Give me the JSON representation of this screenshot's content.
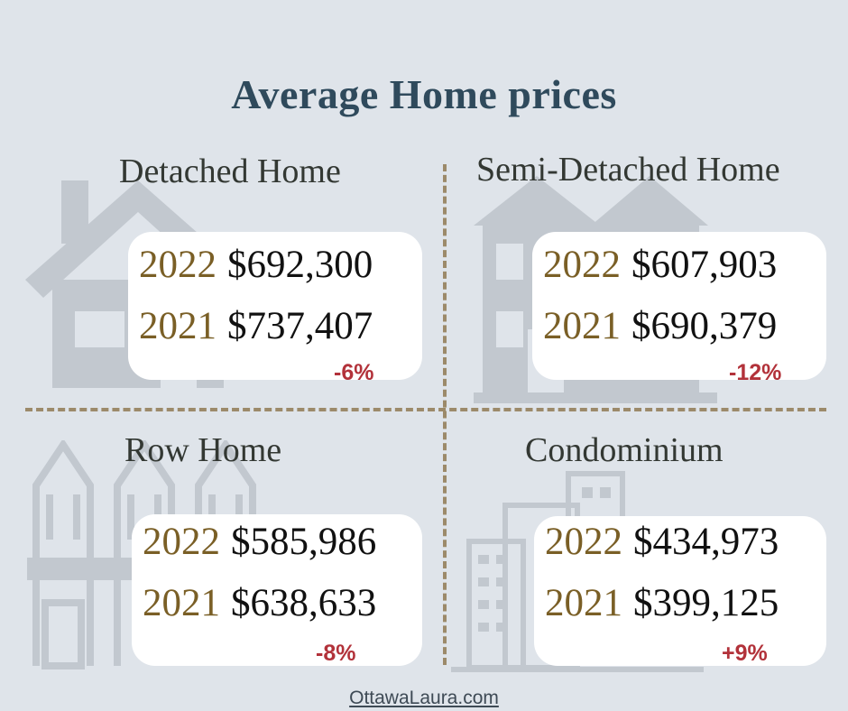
{
  "title": "Average Home prices",
  "quadrants": [
    {
      "name": "Detached Home",
      "rows": [
        {
          "year": "2022",
          "price": "$692,300"
        },
        {
          "year": "2021",
          "price": "$737,407"
        }
      ],
      "change": "-6%"
    },
    {
      "name": "Semi-Detached Home",
      "rows": [
        {
          "year": "2022",
          "price": "$607,903"
        },
        {
          "year": "2021",
          "price": "$690,379"
        }
      ],
      "change": "-12%"
    },
    {
      "name": "Row Home",
      "rows": [
        {
          "year": "2022",
          "price": "$585,986"
        },
        {
          "year": "2021",
          "price": "$638,633"
        }
      ],
      "change": "-8%"
    },
    {
      "name": "Condominium",
      "rows": [
        {
          "year": "2022",
          "price": "$434,973"
        },
        {
          "year": "2021",
          "price": "$399,125"
        }
      ],
      "change": "+9%"
    }
  ],
  "footer": "OttawaLaura.com",
  "colors": {
    "background": "#dfe4ea",
    "title": "#2f4a5c",
    "year": "#7a5f26",
    "change": "#b2323a",
    "divider": "#9c8a6a",
    "illustration": "#c2c8cf"
  },
  "icons": [
    "detached-house-icon",
    "semi-detached-house-icon",
    "row-home-icon",
    "condominium-building-icon"
  ]
}
